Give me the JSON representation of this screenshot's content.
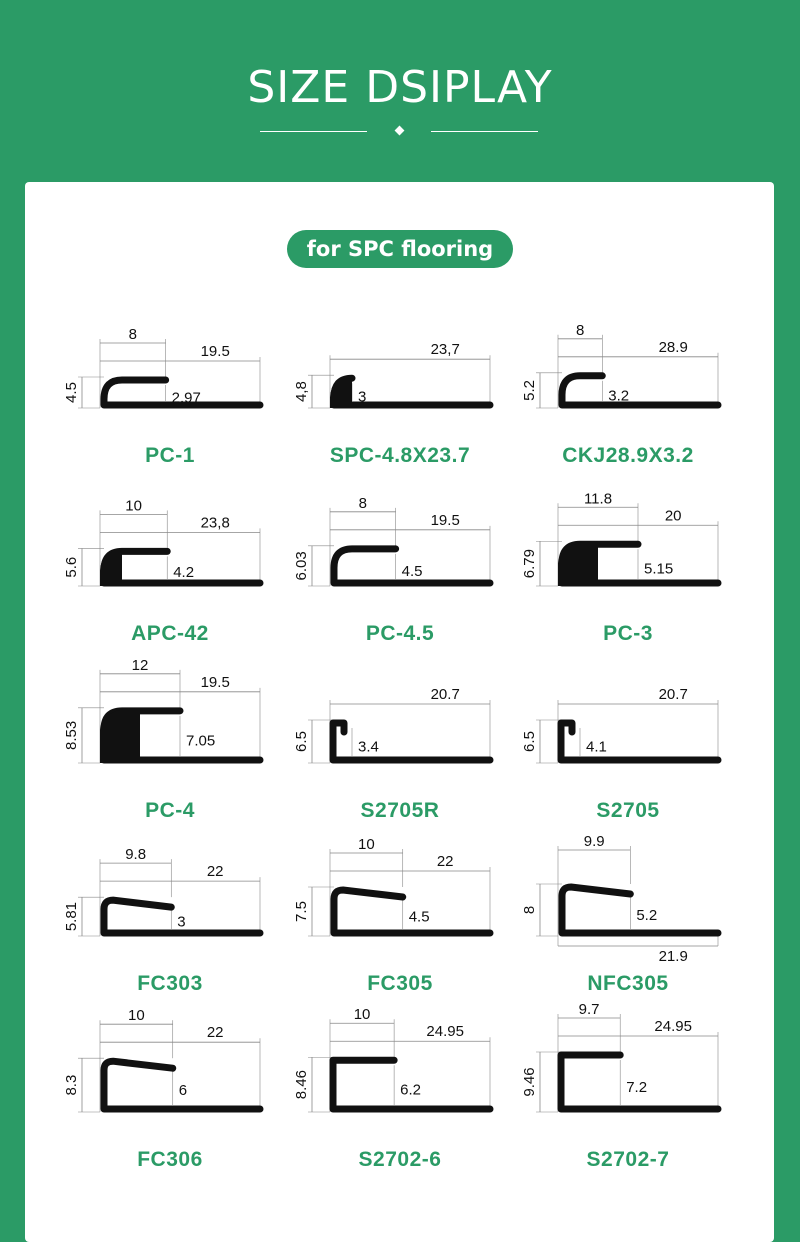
{
  "header": {
    "title": "SIZE DSIPLAY"
  },
  "badge": "for SPC flooring",
  "colors": {
    "brand": "#2b9b66",
    "profile": "#111111",
    "dimension": "#888888"
  },
  "products": [
    {
      "name": "PC-1",
      "type": "j",
      "lip": "8",
      "width": "19.5",
      "height": "4.5",
      "inner": "2.97"
    },
    {
      "name": "SPC-4.8X23.7",
      "type": "solid-small",
      "lip": "",
      "width": "23,7",
      "height": "4,8",
      "inner": "3"
    },
    {
      "name": "CKJ28.9X3.2",
      "type": "j",
      "lip": "8",
      "width": "28.9",
      "height": "5.2",
      "inner": "3.2"
    },
    {
      "name": "APC-42",
      "type": "solid-small",
      "lip": "10",
      "width": "23,8",
      "height": "5.6",
      "inner": "4.2"
    },
    {
      "name": "PC-4.5",
      "type": "j",
      "lip": "8",
      "width": "19.5",
      "height": "6.03",
      "inner": "4.5"
    },
    {
      "name": "PC-3",
      "type": "solid",
      "lip": "11.8",
      "width": "20",
      "height": "6.79",
      "inner": "5.15"
    },
    {
      "name": "PC-4",
      "type": "solid",
      "lip": "12",
      "width": "19.5",
      "height": "8.53",
      "inner": "7.05"
    },
    {
      "name": "S2705R",
      "type": "square",
      "lip": "",
      "width": "20.7",
      "height": "6.5",
      "inner": "3.4"
    },
    {
      "name": "S2705",
      "type": "square",
      "lip": "",
      "width": "20.7",
      "height": "6.5",
      "inner": "4.1"
    },
    {
      "name": "FC303",
      "type": "flat",
      "lip": "9.8",
      "width": "22",
      "height": "5.81",
      "inner": "3"
    },
    {
      "name": "FC305",
      "type": "flat",
      "lip": "10",
      "width": "22",
      "height": "7.5",
      "inner": "4.5"
    },
    {
      "name": "NFC305",
      "type": "flat-bottom",
      "lip": "9.9",
      "width": "21.9",
      "height": "8",
      "inner": "5.2"
    },
    {
      "name": "FC306",
      "type": "flat",
      "lip": "10",
      "width": "22",
      "height": "8.3",
      "inner": "6"
    },
    {
      "name": "S2702-6",
      "type": "box",
      "lip": "10",
      "width": "24.95",
      "height": "8.46",
      "inner": "6.2"
    },
    {
      "name": "S2702-7",
      "type": "box",
      "lip": "9.7",
      "width": "24.95",
      "height": "9.46",
      "inner": "7.2"
    }
  ]
}
